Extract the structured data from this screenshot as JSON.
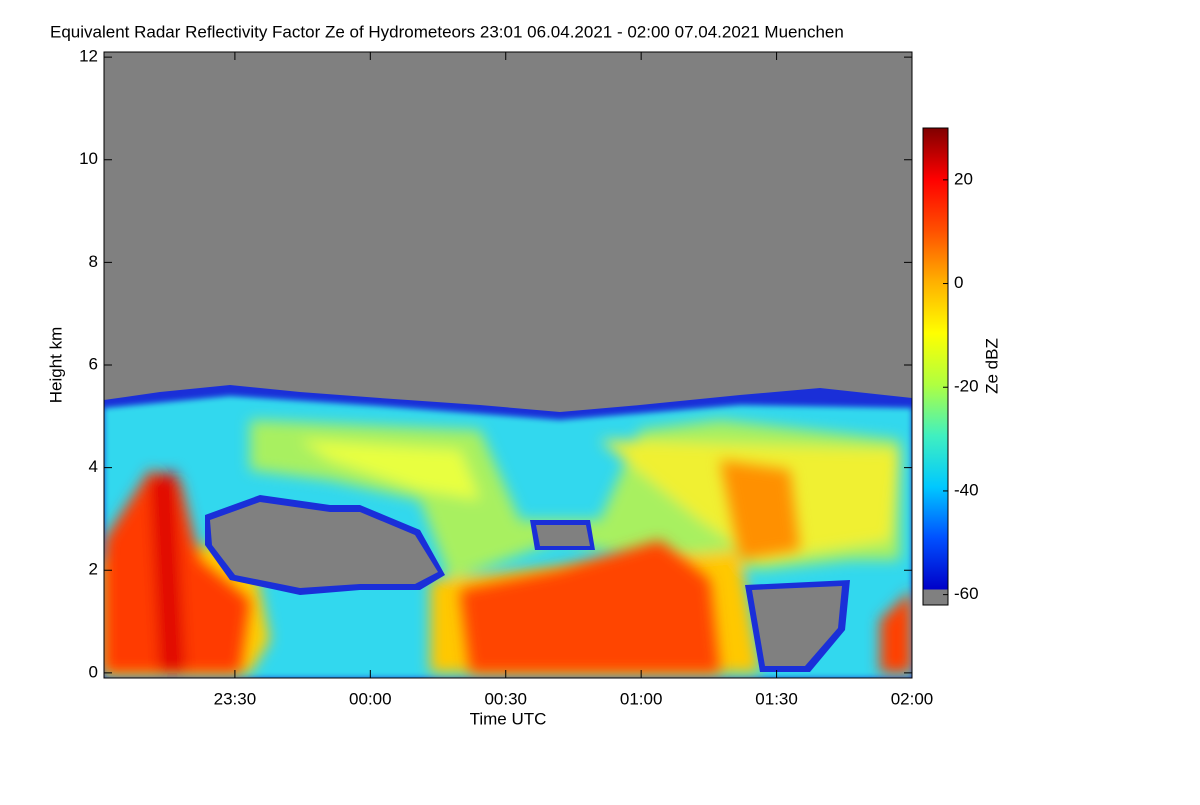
{
  "chart_data": {
    "type": "heatmap",
    "title": "Equivalent Radar Reflectivity Factor Ze of Hydrometeors   23:01 06.04.2021 - 02:00 07.04.2021 Muenchen",
    "x_label": "Time UTC",
    "y_label": "Height km",
    "xlim": [
      23.0167,
      26
    ],
    "xticks": [
      {
        "value": 23.5,
        "label": "23:30"
      },
      {
        "value": 24,
        "label": "00:00"
      },
      {
        "value": 24.5,
        "label": "00:30"
      },
      {
        "value": 25,
        "label": "01:00"
      },
      {
        "value": 25.5,
        "label": "01:30"
      },
      {
        "value": 26,
        "label": "02:00"
      }
    ],
    "ylim": [
      -0.1,
      12.1
    ],
    "yticks": [
      0,
      2,
      4,
      6,
      8,
      10,
      12
    ],
    "colorbar": {
      "label": "Ze dBZ",
      "clim": [
        -62,
        30
      ],
      "ticks": [
        -60,
        -40,
        -20,
        0,
        20
      ],
      "colors": [
        "#0000c8",
        "#0050ff",
        "#00c8ff",
        "#40f0c0",
        "#b0ff40",
        "#ffff00",
        "#ffb000",
        "#ff5000",
        "#ff0000",
        "#800000"
      ],
      "missing_color": "#808080"
    }
  }
}
